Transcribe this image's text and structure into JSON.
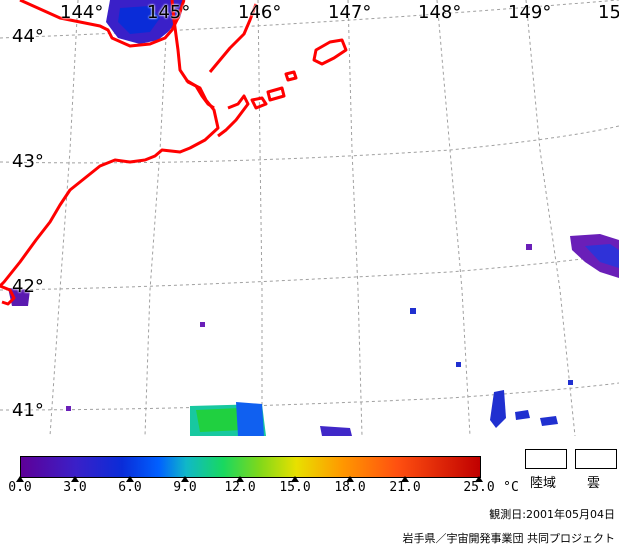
{
  "map": {
    "longitude_labels": [
      "144°",
      "145°",
      "146°",
      "147°",
      "148°",
      "149°",
      "15"
    ],
    "latitude_labels": [
      "44°",
      "43°",
      "42°",
      "41°"
    ],
    "coastline_color": "#ff0000",
    "grid_color": "#a0a0a0"
  },
  "legend": {
    "ticks": [
      "0.0",
      "3.0",
      "6.0",
      "9.0",
      "12.0",
      "15.0",
      "18.0",
      "21.0",
      "25.0"
    ],
    "unit": "°C",
    "land_label": "陸域",
    "cloud_label": "雲",
    "gradient_colors": [
      "#5e0098",
      "#0a2cd8",
      "#10b8c8",
      "#18d860",
      "#e8e000",
      "#ff9800",
      "#c00000"
    ]
  },
  "footer": {
    "observation_date": "観測日:2001年05月04日",
    "credit": "岩手県／宇宙開発事業団 共同プロジェクト"
  }
}
